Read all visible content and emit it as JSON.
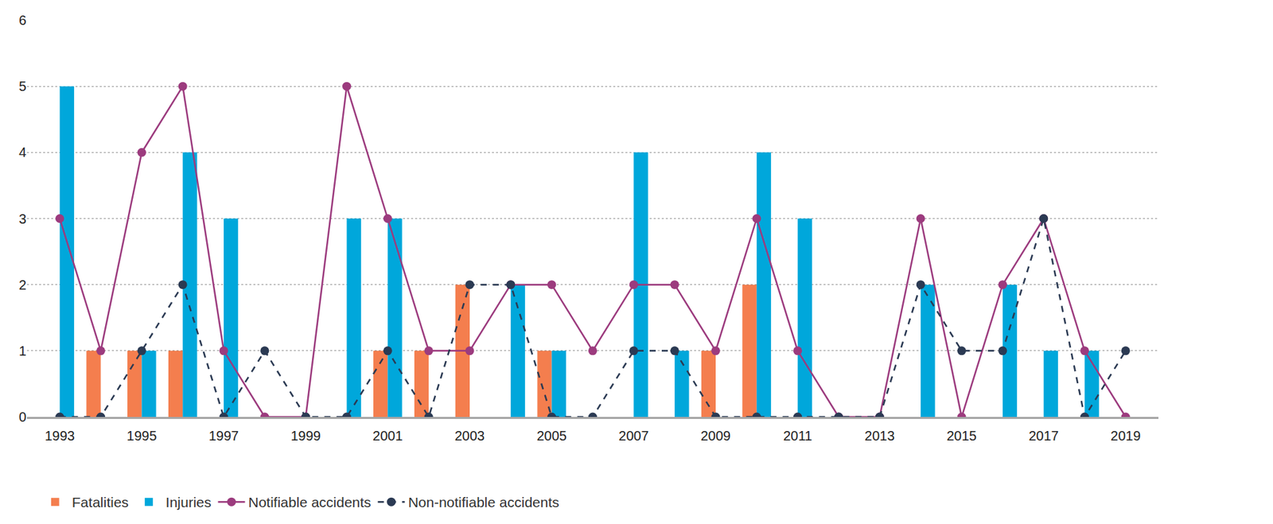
{
  "chart_data": {
    "type": "bar",
    "x": [
      1993,
      1994,
      1995,
      1996,
      1997,
      1998,
      1999,
      2000,
      2001,
      2002,
      2003,
      2004,
      2005,
      2006,
      2007,
      2008,
      2009,
      2010,
      2011,
      2012,
      2013,
      2014,
      2015,
      2016,
      2017,
      2018,
      2019
    ],
    "series": [
      {
        "name": "Fatalities",
        "type": "bar",
        "color": "#f47e4e",
        "values": [
          0,
          1,
          1,
          1,
          0,
          0,
          0,
          0,
          1,
          1,
          2,
          0,
          1,
          0,
          0,
          0,
          1,
          2,
          0,
          0,
          0,
          0,
          0,
          0,
          0,
          0,
          0
        ]
      },
      {
        "name": "Injuries",
        "type": "bar",
        "color": "#00a7db",
        "values": [
          5,
          0,
          1,
          4,
          3,
          0,
          0,
          3,
          3,
          0,
          0,
          2,
          1,
          0,
          4,
          1,
          0,
          4,
          3,
          0,
          0,
          2,
          0,
          2,
          1,
          1,
          0
        ]
      },
      {
        "name": "Notifiable accidents",
        "type": "line",
        "color": "#9c3b7e",
        "marker": "circle",
        "line_style": "solid",
        "values": [
          3,
          1,
          4,
          5,
          1,
          0,
          0,
          5,
          3,
          1,
          1,
          2,
          2,
          1,
          2,
          2,
          1,
          3,
          1,
          0,
          0,
          3,
          0,
          2,
          3,
          1,
          0
        ]
      },
      {
        "name": "Non-notifiable accidents",
        "type": "line",
        "color": "#2b3a53",
        "marker": "circle",
        "line_style": "dashed",
        "values": [
          0,
          0,
          1,
          2,
          0,
          1,
          0,
          0,
          1,
          0,
          2,
          2,
          0,
          0,
          1,
          1,
          0,
          0,
          0,
          0,
          0,
          2,
          1,
          1,
          3,
          0,
          1
        ]
      }
    ],
    "xlim": [
      1992.2,
      2019.8
    ],
    "xticks": [
      1993,
      1995,
      1997,
      1999,
      2001,
      2003,
      2005,
      2007,
      2009,
      2011,
      2013,
      2015,
      2017,
      2019
    ],
    "ylim": [
      0,
      6
    ],
    "yticks": [
      0,
      1,
      2,
      3,
      4,
      5,
      6
    ],
    "grid": true,
    "legend": "bottom"
  }
}
